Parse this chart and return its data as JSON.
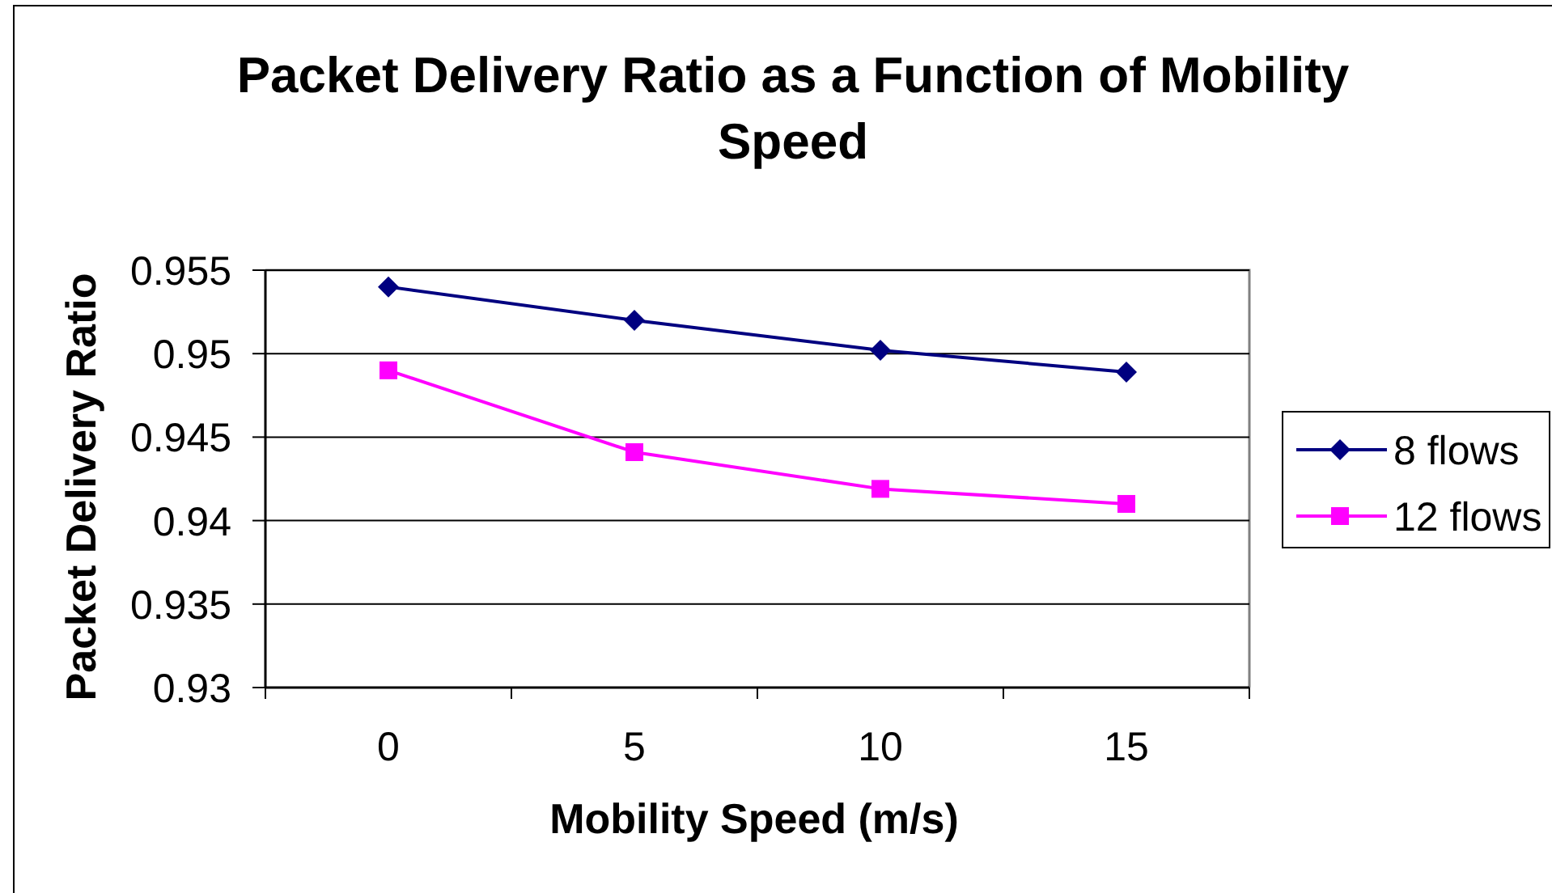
{
  "chart_data": {
    "type": "line",
    "title": "Packet Delivery Ratio as a Function of Mobility Speed",
    "xlabel": "Mobility Speed (m/s)",
    "ylabel": "Packet Delivery Ratio",
    "categories": [
      "0",
      "5",
      "10",
      "15"
    ],
    "series": [
      {
        "name": "8 flows",
        "color": "#000080",
        "marker": "diamond",
        "values": [
          0.954,
          0.952,
          0.9502,
          0.9489
        ]
      },
      {
        "name": "12 flows",
        "color": "#ff00ff",
        "marker": "square",
        "values": [
          0.949,
          0.9441,
          0.9419,
          0.941
        ]
      }
    ],
    "ylim": [
      0.93,
      0.955
    ],
    "yticks": [
      0.93,
      0.935,
      0.94,
      0.945,
      0.95,
      0.955
    ],
    "grid": "y",
    "legend": "right"
  }
}
